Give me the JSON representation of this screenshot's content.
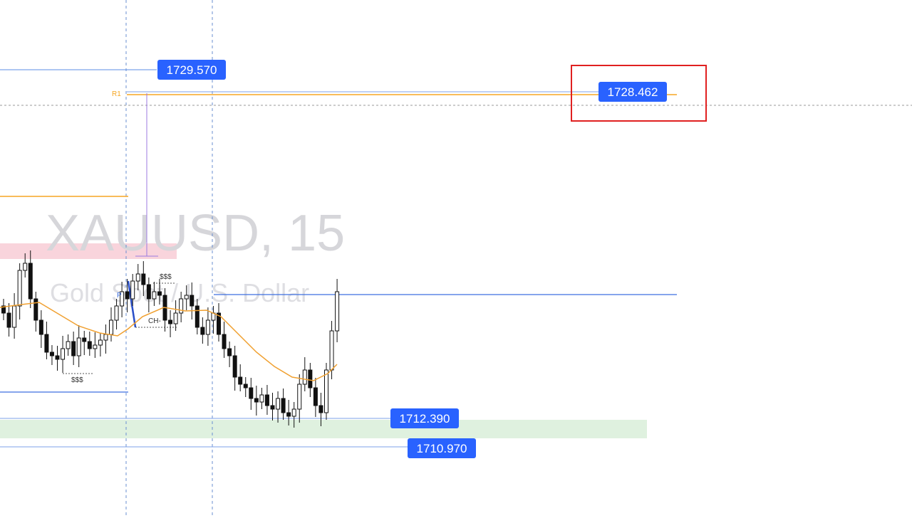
{
  "watermark": {
    "symbol": "XAUUSD, 15",
    "description": "Gold Spot / U.S. Dollar"
  },
  "price_labels": [
    "1729.570",
    "1728.462",
    "1712.390",
    "1710.970"
  ],
  "annotations": {
    "pivot_r1": "R1",
    "pivot_p": "P",
    "liquidity_high": "$$$",
    "liquidity_low": "$$$",
    "choch": "CH-"
  }
}
